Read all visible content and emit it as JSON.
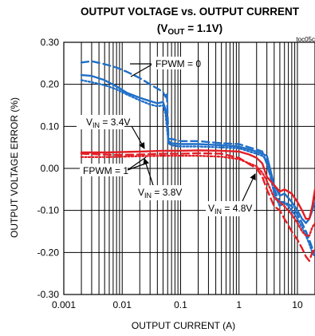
{
  "chart_data": {
    "type": "line",
    "title": "OUTPUT VOLTAGE vs. OUTPUT CURRENT",
    "subtitle_prefix": "(V",
    "subtitle_sub": "OUT",
    "subtitle_suffix": " = 1.1V)",
    "figure_tag": "toc05c",
    "xlabel": "OUTPUT CURRENT (A)",
    "ylabel": "OUTPUT VOLTAGE ERROR (%)",
    "x_scale": "log",
    "xlim": [
      0.001,
      20
    ],
    "ylim": [
      -0.3,
      0.3
    ],
    "x_ticks": [
      {
        "value": 0.001,
        "label": "0.001"
      },
      {
        "value": 0.01,
        "label": "0.01"
      },
      {
        "value": 0.1,
        "label": "0.1"
      },
      {
        "value": 1,
        "label": "1"
      },
      {
        "value": 10,
        "label": "10"
      }
    ],
    "y_ticks": [
      {
        "value": 0.3,
        "label": "0.30"
      },
      {
        "value": 0.2,
        "label": "0.20"
      },
      {
        "value": 0.1,
        "label": "0.10"
      },
      {
        "value": 0.0,
        "label": "0.00"
      },
      {
        "value": -0.1,
        "label": "-0.10"
      },
      {
        "value": -0.2,
        "label": "-0.20"
      },
      {
        "value": -0.3,
        "label": "-0.30"
      }
    ],
    "grid": true,
    "colors": {
      "fpwm0": "#1f6fc8",
      "fpwm1": "#e31e25"
    },
    "annotations": {
      "fpwm0": "FPWM = 0",
      "fpwm1": "FPWM = 1",
      "vin34_prefix": "V",
      "vin34_sub": "IN",
      "vin34_suffix": " = 3.4V",
      "vin38_prefix": "V",
      "vin38_sub": "IN",
      "vin38_suffix": " = 3.8V",
      "vin48_prefix": "V",
      "vin48_sub": "IN",
      "vin48_suffix": " = 4.8V"
    },
    "series": [
      {
        "group": "FPWM = 0",
        "vin": "3.4V",
        "style": "dash",
        "color": "#1f6fc8",
        "x": [
          0.002,
          0.003,
          0.005,
          0.008,
          0.012,
          0.02,
          0.03,
          0.04,
          0.05,
          0.055,
          0.058,
          0.062,
          0.07,
          0.1,
          0.2,
          0.5,
          1,
          1.5,
          2,
          2.5,
          3,
          4,
          5,
          6,
          8,
          10,
          12,
          14,
          16,
          18,
          20
        ],
        "y": [
          0.252,
          0.255,
          0.248,
          0.24,
          0.23,
          0.215,
          0.2,
          0.19,
          0.182,
          0.17,
          0.18,
          0.07,
          0.07,
          0.065,
          0.065,
          0.06,
          0.058,
          0.05,
          0.045,
          0.04,
          0.01,
          -0.05,
          -0.08,
          -0.08,
          -0.09,
          -0.11,
          -0.13,
          -0.15,
          -0.17,
          -0.19,
          -0.2
        ]
      },
      {
        "group": "FPWM = 0",
        "vin": "3.8V",
        "style": "solid",
        "color": "#1f6fc8",
        "x": [
          0.002,
          0.003,
          0.005,
          0.008,
          0.012,
          0.02,
          0.03,
          0.04,
          0.05,
          0.055,
          0.058,
          0.062,
          0.07,
          0.1,
          0.2,
          0.5,
          1,
          1.5,
          2,
          2.5,
          3,
          4,
          5,
          6,
          8,
          10,
          12,
          14,
          16,
          18,
          20
        ],
        "y": [
          0.222,
          0.22,
          0.21,
          0.195,
          0.18,
          0.168,
          0.16,
          0.155,
          0.158,
          0.14,
          0.12,
          0.065,
          0.06,
          0.058,
          0.058,
          0.055,
          0.052,
          0.045,
          0.04,
          0.035,
          0.03,
          -0.04,
          -0.065,
          -0.06,
          -0.08,
          -0.1,
          -0.12,
          -0.13,
          -0.12,
          -0.1,
          -0.08
        ]
      },
      {
        "group": "FPWM = 0",
        "vin": "4.8V",
        "style": "dot",
        "color": "#1f6fc8",
        "x": [
          0.002,
          0.003,
          0.005,
          0.008,
          0.012,
          0.02,
          0.03,
          0.04,
          0.05,
          0.055,
          0.058,
          0.062,
          0.07,
          0.1,
          0.2,
          0.5,
          1,
          1.5,
          2,
          2.5,
          3,
          4,
          5,
          6,
          8,
          10,
          12,
          14,
          16,
          18,
          20
        ],
        "y": [
          0.21,
          0.205,
          0.198,
          0.188,
          0.176,
          0.162,
          0.152,
          0.148,
          0.15,
          0.13,
          0.1,
          0.06,
          0.055,
          0.052,
          0.052,
          0.05,
          0.048,
          0.04,
          0.035,
          0.03,
          0.02,
          -0.06,
          -0.09,
          -0.08,
          -0.1,
          -0.12,
          -0.14,
          -0.16,
          -0.18,
          -0.2,
          -0.21
        ]
      },
      {
        "group": "FPWM = 1",
        "vin": "3.4V",
        "style": "dash",
        "color": "#e31e25",
        "x": [
          0.002,
          0.005,
          0.01,
          0.02,
          0.05,
          0.1,
          0.2,
          0.5,
          1,
          1.5,
          2,
          2.5,
          3,
          4,
          5,
          6,
          8,
          10,
          12,
          14,
          16,
          18,
          20
        ],
        "y": [
          0.035,
          0.033,
          0.032,
          0.033,
          0.035,
          0.035,
          0.036,
          0.035,
          0.025,
          0.01,
          0.0,
          -0.02,
          -0.05,
          -0.09,
          -0.1,
          -0.12,
          -0.15,
          -0.17,
          -0.19,
          -0.21,
          -0.22,
          -0.2,
          -0.19
        ]
      },
      {
        "group": "FPWM = 1",
        "vin": "3.8V",
        "style": "solid",
        "color": "#e31e25",
        "x": [
          0.002,
          0.005,
          0.01,
          0.02,
          0.05,
          0.1,
          0.2,
          0.5,
          1,
          1.5,
          2,
          2.5,
          3,
          4,
          5,
          6,
          8,
          10,
          12,
          14,
          16,
          18,
          20
        ],
        "y": [
          0.038,
          0.038,
          0.039,
          0.04,
          0.042,
          0.042,
          0.043,
          0.042,
          0.04,
          0.033,
          0.025,
          0.012,
          -0.02,
          -0.04,
          -0.055,
          -0.05,
          -0.06,
          -0.08,
          -0.1,
          -0.12,
          -0.12,
          -0.09,
          -0.05
        ]
      },
      {
        "group": "FPWM = 1",
        "vin": "4.8V",
        "style": "dot",
        "color": "#e31e25",
        "x": [
          0.002,
          0.005,
          0.01,
          0.02,
          0.05,
          0.1,
          0.2,
          0.5,
          1,
          1.5,
          2,
          2.5,
          3,
          4,
          5,
          6,
          8,
          10,
          12,
          14,
          16,
          18,
          20
        ],
        "y": [
          0.027,
          0.027,
          0.028,
          0.029,
          0.03,
          0.03,
          0.03,
          0.028,
          0.022,
          0.012,
          0.005,
          -0.01,
          -0.03,
          -0.07,
          -0.08,
          -0.09,
          -0.11,
          -0.13,
          -0.15,
          -0.16,
          -0.16,
          -0.14,
          -0.13
        ]
      }
    ]
  }
}
